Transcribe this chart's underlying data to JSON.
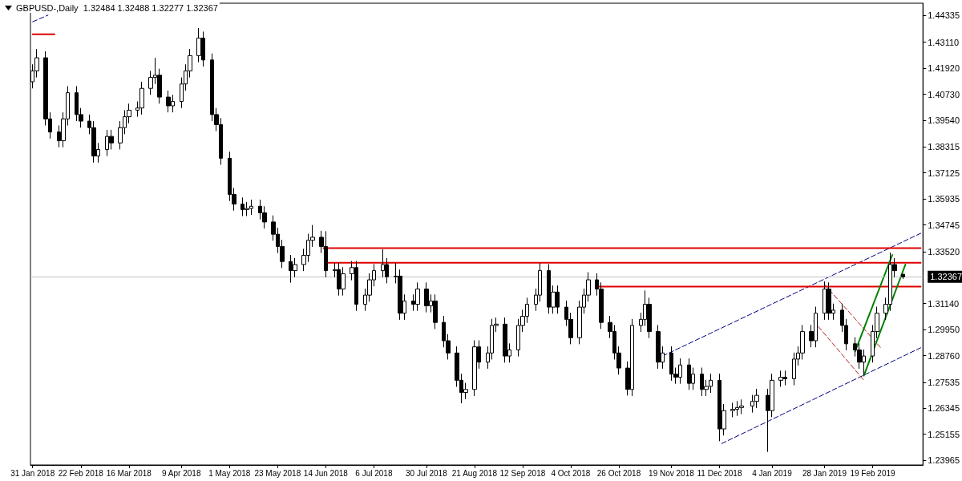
{
  "chart_data": {
    "type": "candlestick",
    "title": "GBPUSD-,Daily  1.32484 1.32488 1.32277 1.32367",
    "grid": false,
    "marker": "none",
    "xlim": [
      "2018-01-30",
      "2019-03-14"
    ],
    "xticks": [
      {
        "value": "2018-01-31",
        "label": "31 Jan 2018"
      },
      {
        "value": "2018-02-22",
        "label": "22 Feb 2018"
      },
      {
        "value": "2018-03-16",
        "label": "16 Mar 2018"
      },
      {
        "value": "2018-04-09",
        "label": "9 Apr 2018"
      },
      {
        "value": "2018-05-01",
        "label": "1 May 2018"
      },
      {
        "value": "2018-05-23",
        "label": "23 May 2018"
      },
      {
        "value": "2018-06-14",
        "label": "14 Jun 2018"
      },
      {
        "value": "2018-07-06",
        "label": "6 Jul 2018"
      },
      {
        "value": "2018-07-30",
        "label": "30 Jul 2018"
      },
      {
        "value": "2018-08-21",
        "label": "21 Aug 2018"
      },
      {
        "value": "2018-09-12",
        "label": "12 Sep 2018"
      },
      {
        "value": "2018-10-04",
        "label": "4 Oct 2018"
      },
      {
        "value": "2018-10-26",
        "label": "26 Oct 2018"
      },
      {
        "value": "2018-11-19",
        "label": "19 Nov 2018"
      },
      {
        "value": "2018-12-11",
        "label": "11 Dec 2018"
      },
      {
        "value": "2019-01-04",
        "label": "4 Jan 2019"
      },
      {
        "value": "2019-01-28",
        "label": "28 Jan 2019"
      },
      {
        "value": "2019-02-19",
        "label": "19 Feb 2019"
      }
    ],
    "ylim": [
      1.2375,
      1.449
    ],
    "yticks": [
      {
        "value": 1.44335,
        "label": "1.44335"
      },
      {
        "value": 1.4311,
        "label": "1.43110"
      },
      {
        "value": 1.4192,
        "label": "1.41920"
      },
      {
        "value": 1.4073,
        "label": "1.40730"
      },
      {
        "value": 1.3954,
        "label": "1.39540"
      },
      {
        "value": 1.38315,
        "label": "1.38315"
      },
      {
        "value": 1.37125,
        "label": "1.37125"
      },
      {
        "value": 1.35935,
        "label": "1.35935"
      },
      {
        "value": 1.34745,
        "label": "1.34745"
      },
      {
        "value": 1.3352,
        "label": "1.33520"
      },
      {
        "value": 1.3114,
        "label": "1.31140"
      },
      {
        "value": 1.2995,
        "label": "1.29950"
      },
      {
        "value": 1.2876,
        "label": "1.28760"
      },
      {
        "value": 1.27535,
        "label": "1.27535"
      },
      {
        "value": 1.26345,
        "label": "1.26345"
      },
      {
        "value": 1.25155,
        "label": "1.25155"
      },
      {
        "value": 1.23965,
        "label": "1.23965"
      }
    ],
    "ref_lines": [
      {
        "axis": "y",
        "value": 1.32367,
        "label": "1.32367",
        "color": "#c0c0c0"
      }
    ],
    "series": [
      {
        "color": "#000000",
        "x": [
          "2018-01-31",
          "2018-02-02",
          "2018-02-06",
          "2018-02-08",
          "2018-02-12",
          "2018-02-14",
          "2018-02-16",
          "2018-02-20",
          "2018-02-22",
          "2018-02-26",
          "2018-02-28",
          "2018-03-02",
          "2018-03-06",
          "2018-03-08",
          "2018-03-12",
          "2018-03-14",
          "2018-03-16",
          "2018-03-20",
          "2018-03-22",
          "2018-03-26",
          "2018-03-28",
          "2018-03-30",
          "2018-04-03",
          "2018-04-05",
          "2018-04-09",
          "2018-04-11",
          "2018-04-13",
          "2018-04-17",
          "2018-04-19",
          "2018-04-23",
          "2018-04-25",
          "2018-04-27",
          "2018-05-01",
          "2018-05-03",
          "2018-05-07",
          "2018-05-09",
          "2018-05-11",
          "2018-05-15",
          "2018-05-17",
          "2018-05-21",
          "2018-05-23",
          "2018-05-25",
          "2018-05-29",
          "2018-05-31",
          "2018-06-04",
          "2018-06-06",
          "2018-06-08",
          "2018-06-12",
          "2018-06-14",
          "2018-06-18",
          "2018-06-20",
          "2018-06-22",
          "2018-06-26",
          "2018-06-28",
          "2018-07-02",
          "2018-07-04",
          "2018-07-06",
          "2018-07-10",
          "2018-07-12",
          "2018-07-16",
          "2018-07-18",
          "2018-07-20",
          "2018-07-24",
          "2018-07-26",
          "2018-07-30",
          "2018-08-01",
          "2018-08-03",
          "2018-08-07",
          "2018-08-09",
          "2018-08-13",
          "2018-08-15",
          "2018-08-17",
          "2018-08-21",
          "2018-08-23",
          "2018-08-27",
          "2018-08-29",
          "2018-08-31",
          "2018-09-04",
          "2018-09-06",
          "2018-09-10",
          "2018-09-12",
          "2018-09-14",
          "2018-09-18",
          "2018-09-20",
          "2018-09-24",
          "2018-09-26",
          "2018-09-28",
          "2018-10-02",
          "2018-10-04",
          "2018-10-08",
          "2018-10-10",
          "2018-10-12",
          "2018-10-16",
          "2018-10-18",
          "2018-10-22",
          "2018-10-24",
          "2018-10-26",
          "2018-10-30",
          "2018-11-01",
          "2018-11-05",
          "2018-11-07",
          "2018-11-09",
          "2018-11-13",
          "2018-11-15",
          "2018-11-19",
          "2018-11-21",
          "2018-11-23",
          "2018-11-27",
          "2018-11-29",
          "2018-12-03",
          "2018-12-05",
          "2018-12-07",
          "2018-12-11",
          "2018-12-13",
          "2018-12-17",
          "2018-12-19",
          "2018-12-21",
          "2018-12-26",
          "2018-12-28",
          "2019-01-02",
          "2019-01-04",
          "2019-01-08",
          "2019-01-10",
          "2019-01-14",
          "2019-01-16",
          "2019-01-18",
          "2019-01-22",
          "2019-01-24",
          "2019-01-28",
          "2019-01-30",
          "2019-02-01",
          "2019-02-05",
          "2019-02-07",
          "2019-02-11",
          "2019-02-13",
          "2019-02-15",
          "2019-02-19",
          "2019-02-21",
          "2019-02-25",
          "2019-02-27",
          "2019-03-01",
          "2019-03-05"
        ],
        "ohlc": [
          [
            1.413,
            1.421,
            1.41,
            1.418
          ],
          [
            1.418,
            1.428,
            1.415,
            1.424
          ],
          [
            1.424,
            1.427,
            1.393,
            1.396
          ],
          [
            1.396,
            1.399,
            1.387,
            1.39
          ],
          [
            1.39,
            1.393,
            1.383,
            1.386
          ],
          [
            1.386,
            1.399,
            1.383,
            1.396
          ],
          [
            1.396,
            1.411,
            1.393,
            1.408
          ],
          [
            1.408,
            1.411,
            1.395,
            1.398
          ],
          [
            1.398,
            1.401,
            1.392,
            1.395
          ],
          [
            1.395,
            1.398,
            1.389,
            1.392
          ],
          [
            1.392,
            1.395,
            1.376,
            1.379
          ],
          [
            1.379,
            1.385,
            1.376,
            1.382
          ],
          [
            1.382,
            1.391,
            1.379,
            1.388
          ],
          [
            1.388,
            1.391,
            1.382,
            1.385
          ],
          [
            1.385,
            1.395,
            1.382,
            1.392
          ],
          [
            1.392,
            1.4,
            1.389,
            1.397
          ],
          [
            1.397,
            1.403,
            1.394,
            1.4
          ],
          [
            1.4,
            1.404,
            1.397,
            1.401
          ],
          [
            1.401,
            1.413,
            1.398,
            1.41
          ],
          [
            1.41,
            1.418,
            1.407,
            1.415
          ],
          [
            1.415,
            1.424,
            1.412,
            1.416
          ],
          [
            1.416,
            1.419,
            1.403,
            1.406
          ],
          [
            1.406,
            1.409,
            1.399,
            1.402
          ],
          [
            1.402,
            1.407,
            1.399,
            1.404
          ],
          [
            1.404,
            1.415,
            1.401,
            1.412
          ],
          [
            1.412,
            1.421,
            1.409,
            1.418
          ],
          [
            1.418,
            1.428,
            1.415,
            1.425
          ],
          [
            1.425,
            1.4376,
            1.422,
            1.433
          ],
          [
            1.433,
            1.436,
            1.42,
            1.423
          ],
          [
            1.423,
            1.426,
            1.395,
            1.398
          ],
          [
            1.398,
            1.401,
            1.3904,
            1.3934
          ],
          [
            1.3934,
            1.3964,
            1.375,
            1.378
          ],
          [
            1.378,
            1.381,
            1.3584,
            1.3614
          ],
          [
            1.3614,
            1.3644,
            1.354,
            1.357
          ],
          [
            1.357,
            1.36,
            1.3515,
            1.3545
          ],
          [
            1.3545,
            1.358,
            1.3515,
            1.355
          ],
          [
            1.355,
            1.359,
            1.352,
            1.356
          ],
          [
            1.356,
            1.359,
            1.35,
            1.353
          ],
          [
            1.353,
            1.356,
            1.3458,
            1.3488
          ],
          [
            1.3488,
            1.3518,
            1.3402,
            1.3432
          ],
          [
            1.3432,
            1.3462,
            1.3346,
            1.3376
          ],
          [
            1.3376,
            1.3406,
            1.3277,
            1.3307
          ],
          [
            1.3307,
            1.3337,
            1.321,
            1.3265
          ],
          [
            1.3265,
            1.3323,
            1.3235,
            1.3293
          ],
          [
            1.3293,
            1.3365,
            1.3263,
            1.3335
          ],
          [
            1.3335,
            1.3434,
            1.3305,
            1.3404
          ],
          [
            1.3404,
            1.3474,
            1.3374,
            1.3418
          ],
          [
            1.3418,
            1.3448,
            1.3346,
            1.3376
          ],
          [
            1.3376,
            1.3446,
            1.3235,
            1.3265
          ],
          [
            1.3265,
            1.33,
            1.3235,
            1.327
          ],
          [
            1.327,
            1.33,
            1.3151,
            1.3181
          ],
          [
            1.3181,
            1.3281,
            1.3151,
            1.3251
          ],
          [
            1.3251,
            1.3309,
            1.3221,
            1.3279
          ],
          [
            1.3279,
            1.3309,
            1.3081,
            1.3111
          ],
          [
            1.3111,
            1.3183,
            1.3081,
            1.3153
          ],
          [
            1.3153,
            1.3253,
            1.3123,
            1.3223
          ],
          [
            1.3223,
            1.3295,
            1.3193,
            1.3265
          ],
          [
            1.3265,
            1.3363,
            1.3235,
            1.3293
          ],
          [
            1.3293,
            1.3323,
            1.3207,
            1.3237
          ],
          [
            1.3237,
            1.33,
            1.3207,
            1.324
          ],
          [
            1.324,
            1.327,
            1.304,
            1.307
          ],
          [
            1.307,
            1.3156,
            1.304,
            1.3126
          ],
          [
            1.3126,
            1.3156,
            1.3081,
            1.3111
          ],
          [
            1.3111,
            1.3211,
            1.3081,
            1.3181
          ],
          [
            1.3181,
            1.3211,
            1.3074,
            1.3104
          ],
          [
            1.3104,
            1.3156,
            1.3074,
            1.3126
          ],
          [
            1.3126,
            1.3156,
            1.2998,
            1.3028
          ],
          [
            1.3028,
            1.3058,
            1.2914,
            1.2944
          ],
          [
            1.2944,
            1.2974,
            1.2858,
            1.2888
          ],
          [
            1.2888,
            1.2918,
            1.2733,
            1.2763
          ],
          [
            1.2763,
            1.2793,
            1.2658,
            1.2707
          ],
          [
            1.2707,
            1.2751,
            1.2677,
            1.2721
          ],
          [
            1.2721,
            1.2946,
            1.2691,
            1.2916
          ],
          [
            1.2916,
            1.2946,
            1.2816,
            1.2846
          ],
          [
            1.2846,
            1.2918,
            1.2816,
            1.2888
          ],
          [
            1.2888,
            1.3044,
            1.2858,
            1.3014
          ],
          [
            1.3014,
            1.305,
            1.2984,
            1.302
          ],
          [
            1.302,
            1.305,
            1.2844,
            1.2874
          ],
          [
            1.2874,
            1.2932,
            1.2844,
            1.2902
          ],
          [
            1.2902,
            1.3044,
            1.2872,
            1.3014
          ],
          [
            1.3014,
            1.3086,
            1.2984,
            1.3056
          ],
          [
            1.3056,
            1.3141,
            1.3026,
            1.3111
          ],
          [
            1.3111,
            1.3183,
            1.3081,
            1.3153
          ],
          [
            1.3153,
            1.33,
            1.3123,
            1.3265
          ],
          [
            1.3265,
            1.3295,
            1.3068,
            1.3098
          ],
          [
            1.3098,
            1.3197,
            1.3068,
            1.3167
          ],
          [
            1.3167,
            1.3197,
            1.3068,
            1.3098
          ],
          [
            1.3098,
            1.3128,
            1.3012,
            1.3042
          ],
          [
            1.3042,
            1.3072,
            1.2928,
            1.2958
          ],
          [
            1.2958,
            1.3128,
            1.2928,
            1.3098
          ],
          [
            1.3098,
            1.3183,
            1.3068,
            1.3153
          ],
          [
            1.3153,
            1.3258,
            1.3123,
            1.3223
          ],
          [
            1.3223,
            1.3253,
            1.3151,
            1.3181
          ],
          [
            1.3181,
            1.3211,
            1.2998,
            1.3028
          ],
          [
            1.3028,
            1.3058,
            1.2956,
            1.2986
          ],
          [
            1.2986,
            1.3016,
            1.2858,
            1.2888
          ],
          [
            1.2888,
            1.2918,
            1.2789,
            1.2819
          ],
          [
            1.2819,
            1.2849,
            1.2693,
            1.2721
          ],
          [
            1.2721,
            1.3044,
            1.2691,
            1.3014
          ],
          [
            1.3014,
            1.3072,
            1.2984,
            1.3042
          ],
          [
            1.3042,
            1.3174,
            1.3012,
            1.3111
          ],
          [
            1.3111,
            1.3141,
            1.2956,
            1.2986
          ],
          [
            1.2986,
            1.3016,
            1.2816,
            1.2846
          ],
          [
            1.2846,
            1.2918,
            1.2816,
            1.2888
          ],
          [
            1.2888,
            1.2918,
            1.2761,
            1.2791
          ],
          [
            1.2791,
            1.2821,
            1.2747,
            1.2777
          ],
          [
            1.2777,
            1.2863,
            1.2747,
            1.2833
          ],
          [
            1.2833,
            1.2863,
            1.2719,
            1.2749
          ],
          [
            1.2749,
            1.2821,
            1.2719,
            1.2791
          ],
          [
            1.2791,
            1.2821,
            1.2691,
            1.2721
          ],
          [
            1.2721,
            1.2765,
            1.2691,
            1.2735
          ],
          [
            1.2735,
            1.2793,
            1.2705,
            1.2763
          ],
          [
            1.2763,
            1.2793,
            1.2484,
            1.254
          ],
          [
            1.254,
            1.2654,
            1.251,
            1.2624
          ],
          [
            1.2624,
            1.266,
            1.2594,
            1.263
          ],
          [
            1.263,
            1.2668,
            1.26,
            1.2638
          ],
          [
            1.2638,
            1.2675,
            1.2608,
            1.2645
          ],
          [
            1.2645,
            1.2696,
            1.2615,
            1.2666
          ],
          [
            1.2666,
            1.2724,
            1.2636,
            1.2694
          ],
          [
            1.2694,
            1.2724,
            1.2435,
            1.2624
          ],
          [
            1.2624,
            1.2793,
            1.2594,
            1.2763
          ],
          [
            1.2763,
            1.2807,
            1.2733,
            1.2777
          ],
          [
            1.2777,
            1.2807,
            1.274,
            1.277
          ],
          [
            1.277,
            1.289,
            1.274,
            1.286
          ],
          [
            1.286,
            1.2918,
            1.283,
            1.2888
          ],
          [
            1.2888,
            1.3016,
            1.2858,
            1.2986
          ],
          [
            1.2986,
            1.3016,
            1.2914,
            1.2944
          ],
          [
            1.2944,
            1.31,
            1.2914,
            1.307
          ],
          [
            1.307,
            1.3216,
            1.304,
            1.3181
          ],
          [
            1.3181,
            1.3211,
            1.304,
            1.307
          ],
          [
            1.307,
            1.3114,
            1.304,
            1.3084
          ],
          [
            1.3084,
            1.3114,
            1.2984,
            1.3014
          ],
          [
            1.3014,
            1.3044,
            1.29,
            1.293
          ],
          [
            1.293,
            1.296,
            1.2872,
            1.2902
          ],
          [
            1.2902,
            1.2932,
            1.2816,
            1.2846
          ],
          [
            1.2846,
            1.2904,
            1.2784,
            1.2874
          ],
          [
            1.2874,
            1.3016,
            1.2844,
            1.2986
          ],
          [
            1.2986,
            1.31,
            1.2956,
            1.307
          ],
          [
            1.307,
            1.3141,
            1.304,
            1.3111
          ],
          [
            1.3111,
            1.3348,
            1.3081,
            1.3293
          ],
          [
            1.3293,
            1.3323,
            1.3235,
            1.3265
          ],
          [
            1.32484,
            1.32488,
            1.32277,
            1.32367
          ]
        ]
      },
      {
        "type": "line",
        "color": "#000080",
        "line_style": "dashed",
        "x": [
          "2018-01-31",
          "2018-02-07"
        ],
        "values": [
          1.4405,
          1.4435
        ]
      },
      {
        "type": "line",
        "color": "#000080",
        "line_style": "dashed",
        "x": [
          "2018-11-15",
          "2019-03-13"
        ],
        "values": [
          1.2874,
          1.3436
        ]
      },
      {
        "type": "line",
        "color": "#000080",
        "line_style": "dashed",
        "x": [
          "2018-12-12",
          "2019-03-13"
        ],
        "values": [
          1.2473,
          1.2912
        ]
      },
      {
        "type": "line",
        "color": "#e00000",
        "line_style": "solid",
        "x": [
          "2018-01-31",
          "2018-02-10"
        ],
        "values": [
          1.4348,
          1.4348
        ]
      },
      {
        "type": "line",
        "color": "#e00000",
        "line_style": "solid",
        "x": [
          "2018-06-13",
          "2019-03-13"
        ],
        "values": [
          1.3368,
          1.3368
        ]
      },
      {
        "type": "line",
        "color": "#e00000",
        "line_style": "solid",
        "x": [
          "2018-06-15",
          "2019-03-13"
        ],
        "values": [
          1.3301,
          1.3301
        ]
      },
      {
        "type": "line",
        "color": "#e00000",
        "line_style": "solid",
        "x": [
          "2018-10-16",
          "2019-03-13"
        ],
        "values": [
          1.3192,
          1.3192
        ]
      },
      {
        "type": "line",
        "color": "#b22222",
        "line_style": "dashed",
        "x": [
          "2019-01-28",
          "2019-02-23"
        ],
        "values": [
          1.3202,
          1.2909
        ]
      },
      {
        "type": "line",
        "color": "#b22222",
        "line_style": "dashed",
        "x": [
          "2019-01-23",
          "2019-02-15"
        ],
        "values": [
          1.3035,
          1.2763
        ]
      },
      {
        "type": "line",
        "color": "#008000",
        "line_style": "solid",
        "x": [
          "2019-02-11",
          "2019-02-28"
        ],
        "values": [
          1.2895,
          1.3337
        ]
      },
      {
        "type": "line",
        "color": "#008000",
        "line_style": "solid",
        "x": [
          "2019-02-15",
          "2019-03-06"
        ],
        "values": [
          1.2784,
          1.3293
        ]
      }
    ]
  }
}
